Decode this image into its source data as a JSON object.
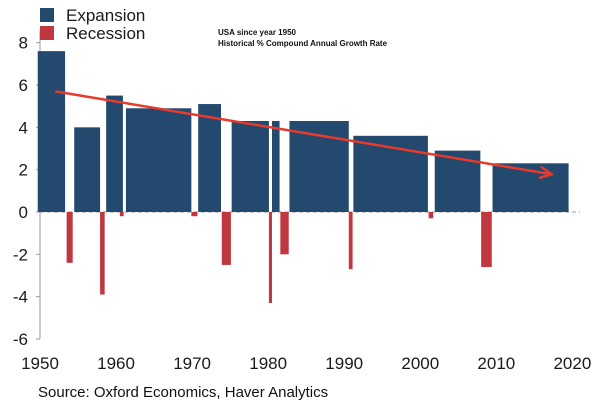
{
  "chart_data": {
    "type": "bar",
    "x_range": [
      1950,
      2021
    ],
    "ylim": [
      -6,
      9
    ],
    "yticks": [
      8,
      6,
      4,
      2,
      0,
      -2,
      -4,
      -6
    ],
    "xticks": [
      1950,
      1960,
      1970,
      1980,
      1990,
      2000,
      2010,
      2020
    ],
    "tick_labels": {
      "y": [
        "8",
        "6",
        "4",
        "2",
        "0",
        "-2",
        "-4",
        "-6"
      ],
      "x": [
        "1950",
        "1960",
        "1970",
        "1980",
        "1990",
        "2000",
        "2010",
        "2020"
      ]
    },
    "legend": [
      "Expansion",
      "Recession"
    ],
    "notes": [
      "USA since year 1950",
      "Historical % Compound Annual Growth Rate"
    ],
    "series": [
      {
        "name": "Expansion",
        "color": "#24496f",
        "bars": [
          {
            "start": 1949.7,
            "end": 1953.3,
            "value": 7.6
          },
          {
            "start": 1954.5,
            "end": 1957.9,
            "value": 4.0
          },
          {
            "start": 1958.7,
            "end": 1960.9,
            "value": 5.5
          },
          {
            "start": 1961.3,
            "end": 1969.9,
            "value": 4.9
          },
          {
            "start": 1970.8,
            "end": 1973.8,
            "value": 5.1
          },
          {
            "start": 1975.2,
            "end": 1980.1,
            "value": 4.3
          },
          {
            "start": 1980.5,
            "end": 1981.5,
            "value": 4.3
          },
          {
            "start": 1982.8,
            "end": 1990.6,
            "value": 4.3
          },
          {
            "start": 1991.2,
            "end": 2001.0,
            "value": 3.6
          },
          {
            "start": 2001.9,
            "end": 2007.9,
            "value": 2.9
          },
          {
            "start": 2009.5,
            "end": 2019.5,
            "value": 2.3
          }
        ]
      },
      {
        "name": "Recession",
        "color": "#c1373f",
        "bars": [
          {
            "start": 1953.5,
            "end": 1954.3,
            "value": -2.4
          },
          {
            "start": 1957.9,
            "end": 1958.5,
            "value": -3.9
          },
          {
            "start": 1960.5,
            "end": 1961.0,
            "value": -0.2
          },
          {
            "start": 1969.9,
            "end": 1970.7,
            "value": -0.2
          },
          {
            "start": 1973.9,
            "end": 1975.1,
            "value": -2.5
          },
          {
            "start": 1980.1,
            "end": 1980.5,
            "value": -4.3
          },
          {
            "start": 1981.6,
            "end": 1982.7,
            "value": -2.0
          },
          {
            "start": 1990.6,
            "end": 1991.1,
            "value": -2.7
          },
          {
            "start": 2001.1,
            "end": 2001.7,
            "value": -0.3
          },
          {
            "start": 2008.0,
            "end": 2009.4,
            "value": -2.6
          }
        ]
      }
    ],
    "trend": {
      "color": "#e8392d",
      "from": [
        1952,
        5.7
      ],
      "to": [
        2017,
        1.8
      ]
    }
  },
  "source": "Source: Oxford Economics, Haver Analytics"
}
